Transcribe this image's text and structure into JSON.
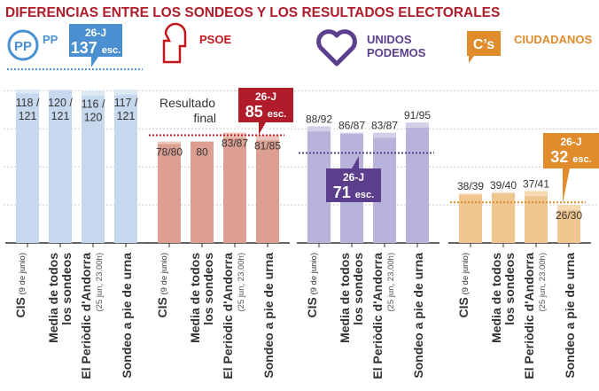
{
  "chart_data": {
    "type": "bar",
    "title": "DIFERENCIAS ENTRE LOS SONDEOS Y LOS RESULTADOS ELECTORALES",
    "title_color": "#b01c2a",
    "ylim": [
      0,
      140
    ],
    "grid": true,
    "gridlines": [
      30,
      60,
      90,
      120
    ],
    "result_annotation": {
      "line1": "Resultado",
      "line2": "final"
    },
    "categories": [
      {
        "main": "CIS",
        "sub": "(9 de junio)"
      },
      {
        "main": "Media de todos",
        "main2": "los sondeos"
      },
      {
        "main": "El Periòdic d'Andorra",
        "sub": "(25 jun, 23.00h)"
      },
      {
        "main": "Sondeo a pie de urna"
      }
    ],
    "series": [
      {
        "name": "PP",
        "logo_text": "PP",
        "color": "#4a90d0",
        "bar_color": "#c6d8ee",
        "bar_light": "#dde8f5",
        "result": 137,
        "result_date": "26-J",
        "result_unit": "esc.",
        "polls": [
          {
            "low": 118,
            "high": 121,
            "label": "118 /",
            "label2": "121"
          },
          {
            "low": 120,
            "high": 121,
            "label": "120 /",
            "label2": "121"
          },
          {
            "low": 116,
            "high": 120,
            "label": "116 /",
            "label2": "120"
          },
          {
            "low": 117,
            "high": 121,
            "label": "117 /",
            "label2": "121"
          }
        ]
      },
      {
        "name": "PSOE",
        "color": "#c4161c",
        "bar_color": "#dc9f92",
        "bar_light": "#ebc6bd",
        "result": 85,
        "result_date": "26-J",
        "result_unit": "esc.",
        "polls": [
          {
            "low": 78,
            "high": 80,
            "label": "78/80"
          },
          {
            "low": 80,
            "high": 80,
            "label": "80"
          },
          {
            "low": 83,
            "high": 87,
            "label": "83/87"
          },
          {
            "low": 81,
            "high": 85,
            "label": "81/85"
          }
        ]
      },
      {
        "name": "UNIDOS",
        "name2": "PODEMOS",
        "color": "#5b3f8c",
        "bar_color": "#b8b3da",
        "bar_light": "#d3cfe8",
        "result": 71,
        "result_date": "26-J",
        "result_unit": "esc.",
        "polls": [
          {
            "low": 88,
            "high": 92,
            "label": "88/92"
          },
          {
            "low": 86,
            "high": 87,
            "label": "86/87"
          },
          {
            "low": 83,
            "high": 87,
            "label": "83/87"
          },
          {
            "low": 91,
            "high": 95,
            "label": "91/95"
          }
        ]
      },
      {
        "name": "CIUDADANOS",
        "logo_text": "C’s",
        "color": "#e08b2c",
        "bar_color": "#efc690",
        "bar_light": "#f5dab4",
        "result": 32,
        "result_date": "26-J",
        "result_unit": "esc.",
        "polls": [
          {
            "low": 38,
            "high": 39,
            "label": "38/39"
          },
          {
            "low": 39,
            "high": 40,
            "label": "39/40"
          },
          {
            "low": 37,
            "high": 41,
            "label": "37/41"
          },
          {
            "low": 26,
            "high": 30,
            "label": "26/30"
          }
        ]
      }
    ]
  }
}
